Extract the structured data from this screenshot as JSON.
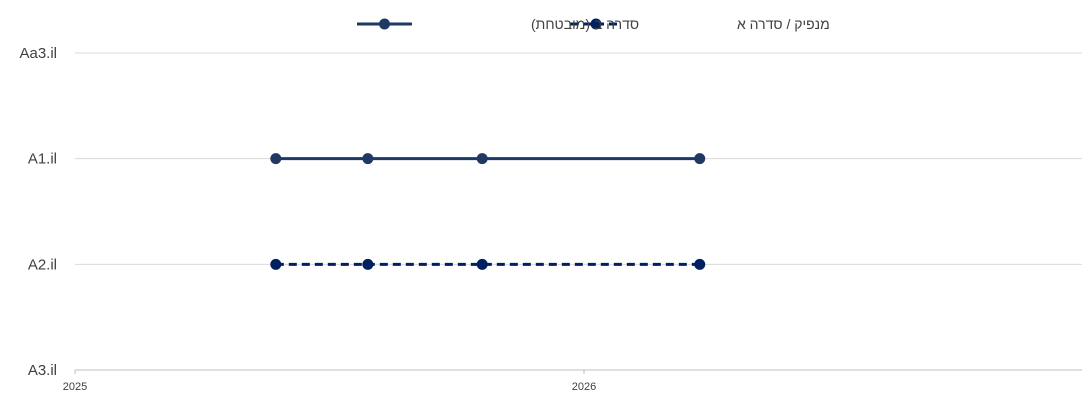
{
  "chart_data": {
    "type": "line",
    "title": "",
    "xlabel": "",
    "ylabel": "",
    "x_ticks": [
      "2025",
      "2026"
    ],
    "xlim": [
      "2025-01-01",
      "2026-12-31"
    ],
    "y_categories": [
      "A3.il",
      "A2.il",
      "A1.il",
      "Aa3.il"
    ],
    "grid": true,
    "legend_position": "top",
    "series": [
      {
        "name": "סדרה ב (מובטחת)",
        "style": "solid",
        "color": "#203864",
        "points": [
          {
            "x": "2025-05-25",
            "y": "A1.il"
          },
          {
            "x": "2025-07-30",
            "y": "A1.il"
          },
          {
            "x": "2025-10-20",
            "y": "A1.il"
          },
          {
            "x": "2026-03-25",
            "y": "A1.il"
          }
        ]
      },
      {
        "name": "מנפיק / סדרה א",
        "style": "dashed",
        "color": "#002060",
        "points": [
          {
            "x": "2025-05-25",
            "y": "A2.il"
          },
          {
            "x": "2025-07-30",
            "y": "A2.il"
          },
          {
            "x": "2025-10-20",
            "y": "A2.il"
          },
          {
            "x": "2026-03-25",
            "y": "A2.il"
          }
        ]
      }
    ]
  }
}
